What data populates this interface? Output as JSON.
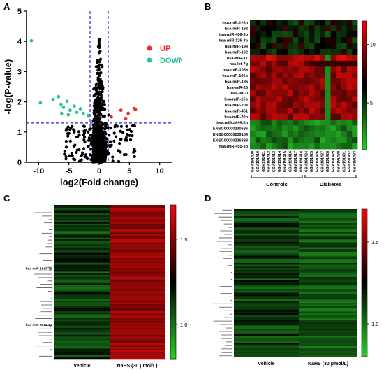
{
  "panels": [
    {
      "label": "A"
    },
    {
      "label": "B"
    },
    {
      "label": "C"
    },
    {
      "label": "D"
    }
  ],
  "chart_data": [
    {
      "type": "scatter",
      "panel": "A",
      "xlabel": "log2(Fold change)",
      "ylabel": "-log(P-value)",
      "xlim": [
        -12,
        12
      ],
      "ylim": [
        0,
        5
      ],
      "xticks": [
        "-10",
        "-5",
        "0",
        "5",
        "10"
      ],
      "yticks": [
        "0",
        "1",
        "2",
        "3",
        "4",
        "5"
      ],
      "thresholds": {
        "x": [
          -1.5,
          1.5
        ],
        "y": 1.3
      },
      "series": [
        {
          "name": "UP",
          "color": "#ee2a2a",
          "points": [
            [
              3.6,
              1.72
            ],
            [
              4.8,
              1.62
            ],
            [
              5.8,
              1.78
            ],
            [
              6.0,
              1.75
            ],
            [
              4.4,
              1.45
            ],
            [
              2.0,
              1.5
            ]
          ]
        },
        {
          "name": "DOWN",
          "color": "#2ec29a",
          "points": [
            [
              -11.2,
              4.02
            ],
            [
              -9.7,
              1.97
            ],
            [
              -7.6,
              2.08
            ],
            [
              -6.7,
              2.17
            ],
            [
              -6.3,
              1.92
            ],
            [
              -5.9,
              1.82
            ],
            [
              -5.3,
              2.02
            ],
            [
              -4.8,
              1.72
            ],
            [
              -4.1,
              1.86
            ],
            [
              -3.7,
              1.65
            ],
            [
              -3.1,
              1.77
            ],
            [
              -6.2,
              1.62
            ],
            [
              -5.1,
              1.57
            ],
            [
              -2.6,
              1.62
            ],
            [
              -1.8,
              1.55
            ]
          ]
        },
        {
          "name": "",
          "color": "#000000",
          "points": []
        }
      ]
    },
    {
      "type": "heatmap",
      "panel": "B",
      "rows": [
        "hsa-miR-125b",
        "hsa-miR-182",
        "hsa-miR-486-3p",
        "hsa-miR-126-3p",
        "hsa-miR-194",
        "hsa-miR-192",
        "hsa-miR-17",
        "hsa-let-7g",
        "hsa-miR-106a",
        "hsa-miR-106b",
        "hsa-miR-18a",
        "hsa-miR-25",
        "hsa-let-7i",
        "hsa-miR-15b",
        "hsa-miR-20a",
        "hsa-miR-451",
        "hsa-miR-20b",
        "hsa-miR-4695-5p",
        "ENSG00000230686",
        "ENSG00000239154",
        "ENSG00000236388",
        "hsa-miR-455-3p"
      ],
      "columns": [
        "GSM191409",
        "GSM191410",
        "GSM191411",
        "GSM191412",
        "GSM191413",
        "GSM191414",
        "GSM191415",
        "GSM191416",
        "GSM191417",
        "GSM191418",
        "GSM191424",
        "GSM191425",
        "GSM191426",
        "GSM191427",
        "GSM191428",
        "GSM191429",
        "GSM191430",
        "GSM191431",
        "GSM191432",
        "GSM191433"
      ],
      "groups": [
        {
          "label": "Controls",
          "from": 0,
          "to": 9
        },
        {
          "label": "Diabetes",
          "from": 10,
          "to": 19
        }
      ],
      "colorbar": {
        "ticks": [
          "10",
          "5"
        ],
        "range": [
          1,
          12
        ]
      }
    },
    {
      "type": "heatmap",
      "panel": "C",
      "columns": [
        "Vehicle",
        "NaHS (30 μmol/L)"
      ],
      "visible_row_labels": [
        "hsa-miR-186a-3p",
        "hsa-miR-3182-5p"
      ],
      "colorbar": {
        "ticks": [
          "1.5",
          "1.0"
        ],
        "range": [
          0.8,
          1.7
        ]
      }
    },
    {
      "type": "heatmap",
      "panel": "D",
      "columns": [
        "Vehicle",
        "NaHS (30 μmol/L)"
      ],
      "colorbar": {
        "ticks": [
          "1.5",
          "1.0"
        ],
        "range": [
          0.8,
          1.7
        ]
      }
    }
  ]
}
